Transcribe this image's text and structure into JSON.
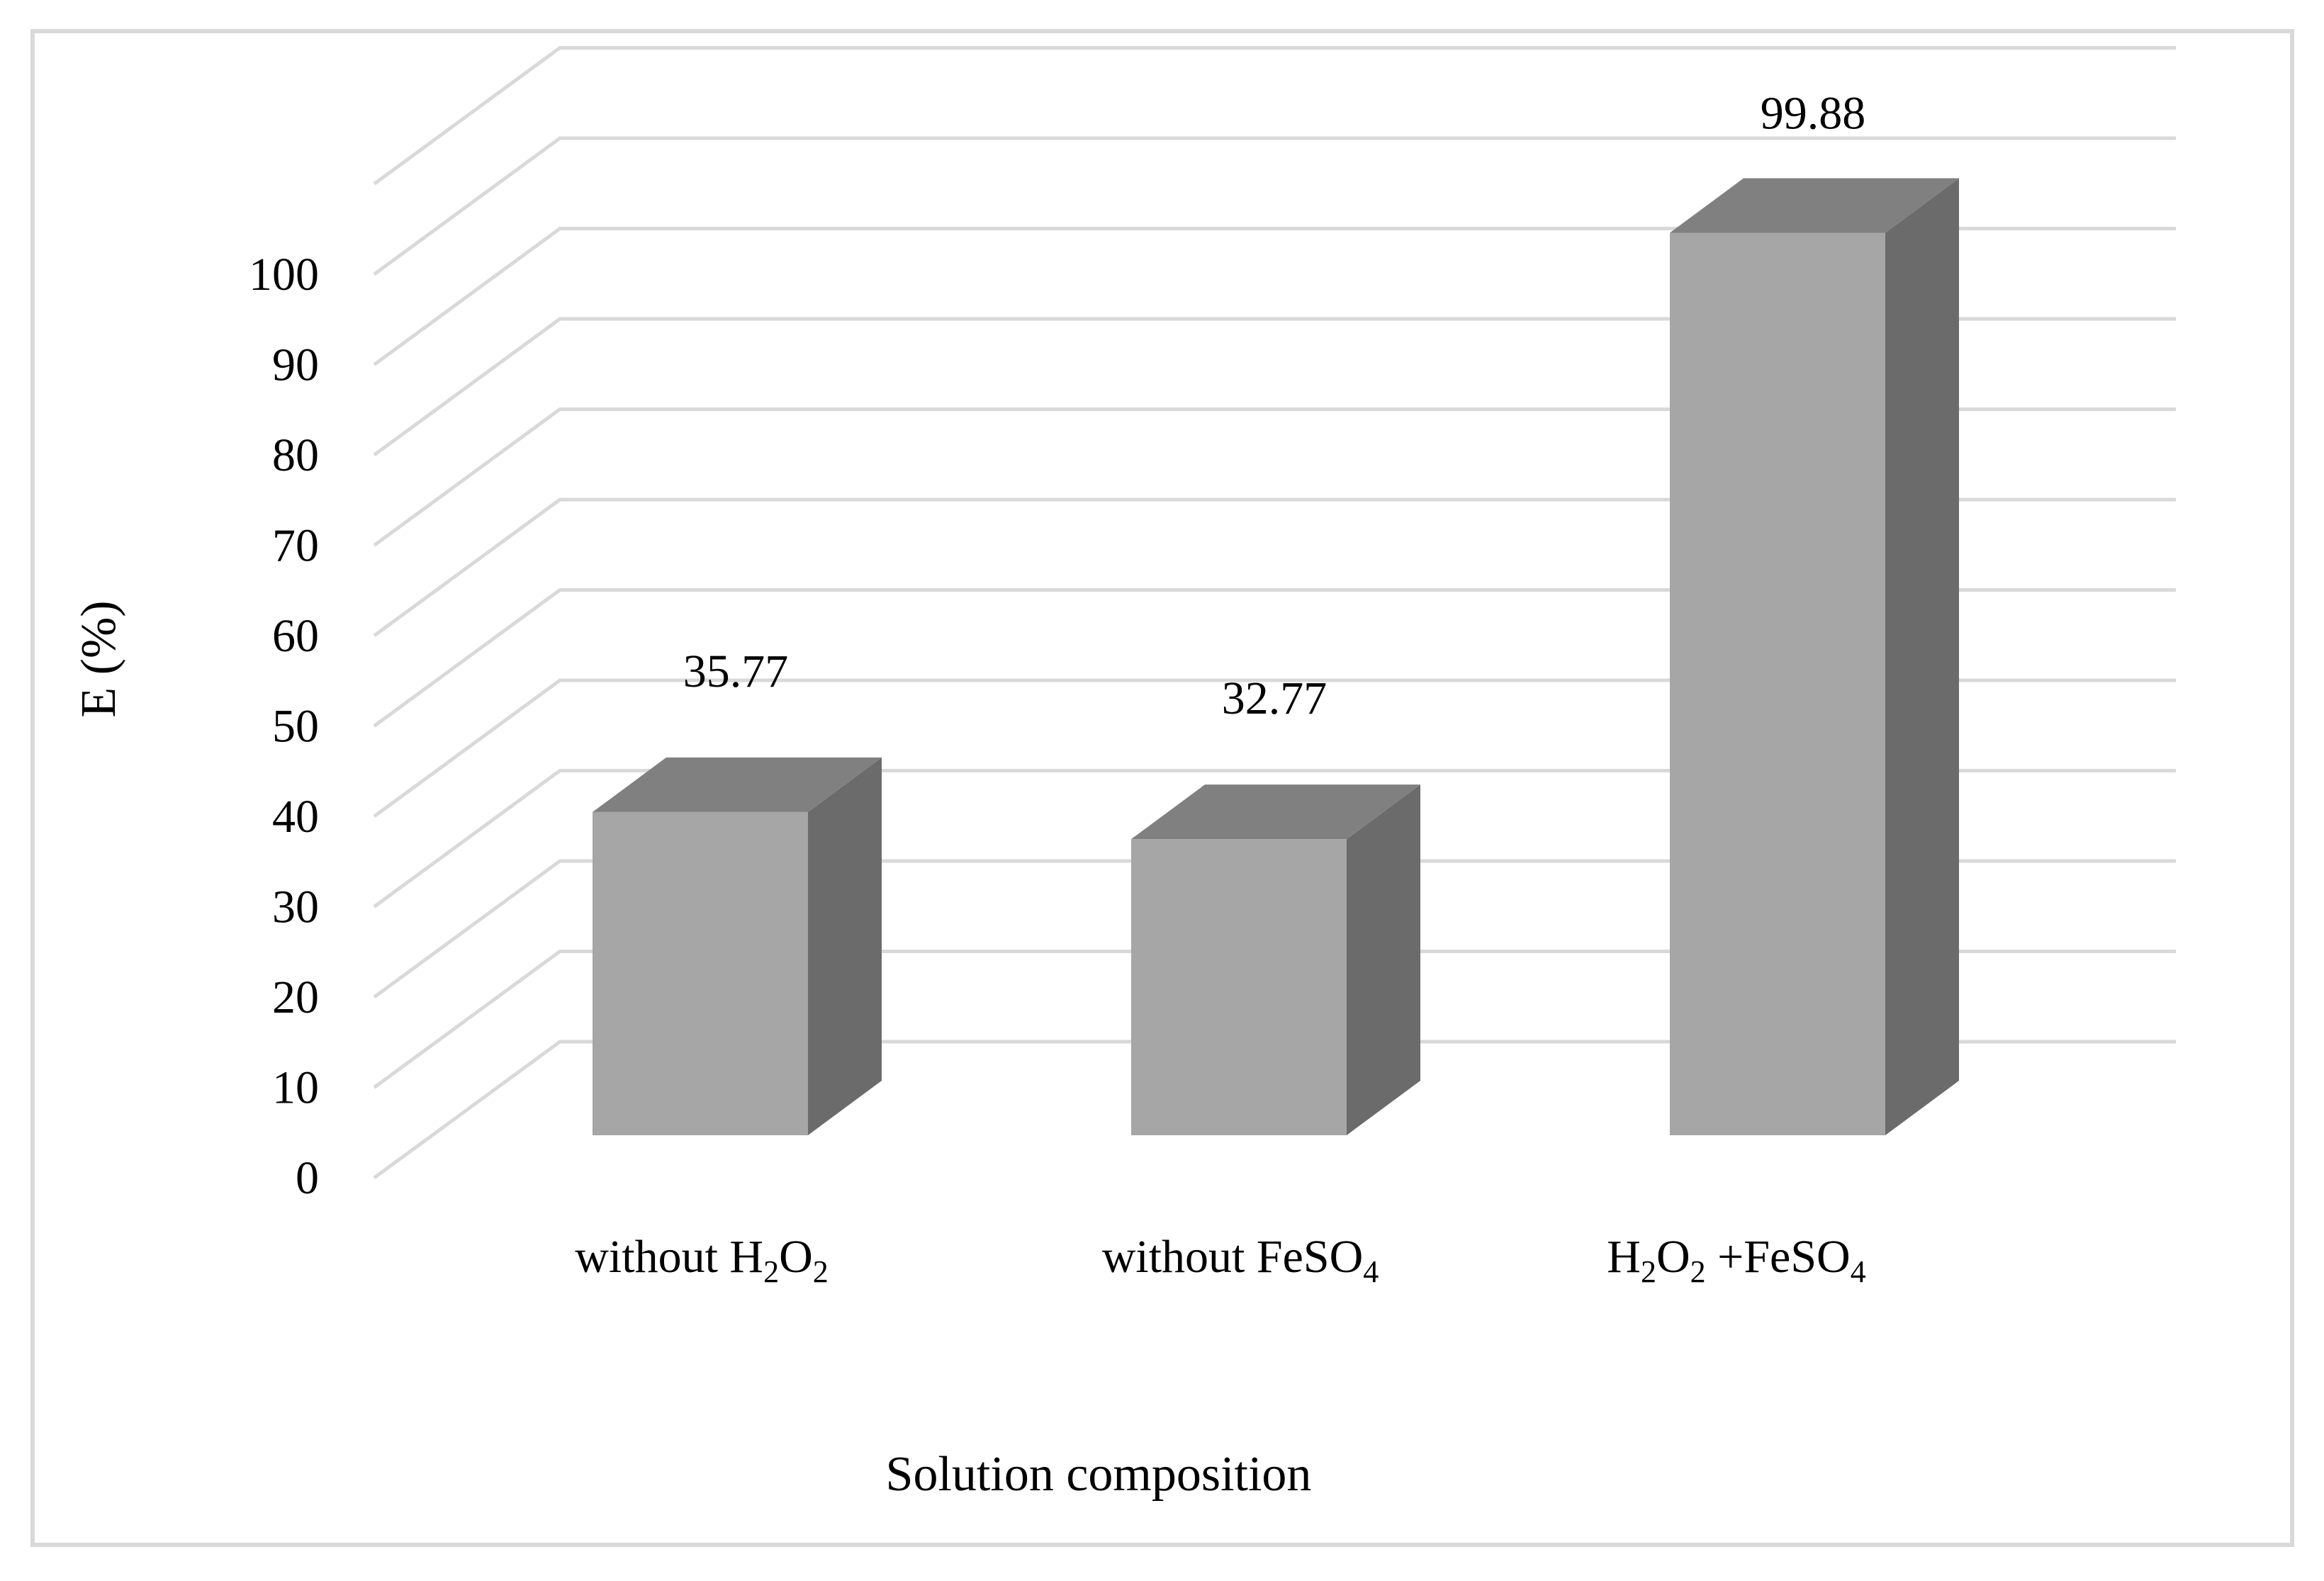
{
  "chart_data": {
    "type": "bar",
    "title": "",
    "categories": [
      {
        "text": "without H",
        "sub1": "2",
        "mid": "O",
        "sub2": "2",
        "tail": ""
      },
      {
        "text": "without FeSO",
        "sub1": "4",
        "mid": "",
        "sub2": "",
        "tail": ""
      },
      {
        "text": "H",
        "sub1": "2",
        "mid": "O",
        "sub2": "2",
        "tail": " +FeSO",
        "sub3": "4"
      }
    ],
    "values": [
      35.77,
      32.77,
      99.88
    ],
    "value_labels": [
      "35.77",
      "32.77",
      "99.88"
    ],
    "xlabel": "Solution composition",
    "ylabel": "E (%)",
    "ylim": [
      0,
      100
    ],
    "yticks": [
      "0",
      "10",
      "20",
      "30",
      "40",
      "50",
      "60",
      "70",
      "80",
      "90",
      "100"
    ],
    "grid": true,
    "legend": "none",
    "style": "3d-column",
    "colors": {
      "front": "#a6a6a6",
      "top": "#808080",
      "side": "#6b6b6b",
      "grid": "#d9d9d9",
      "border": "#d9d9d9"
    }
  }
}
